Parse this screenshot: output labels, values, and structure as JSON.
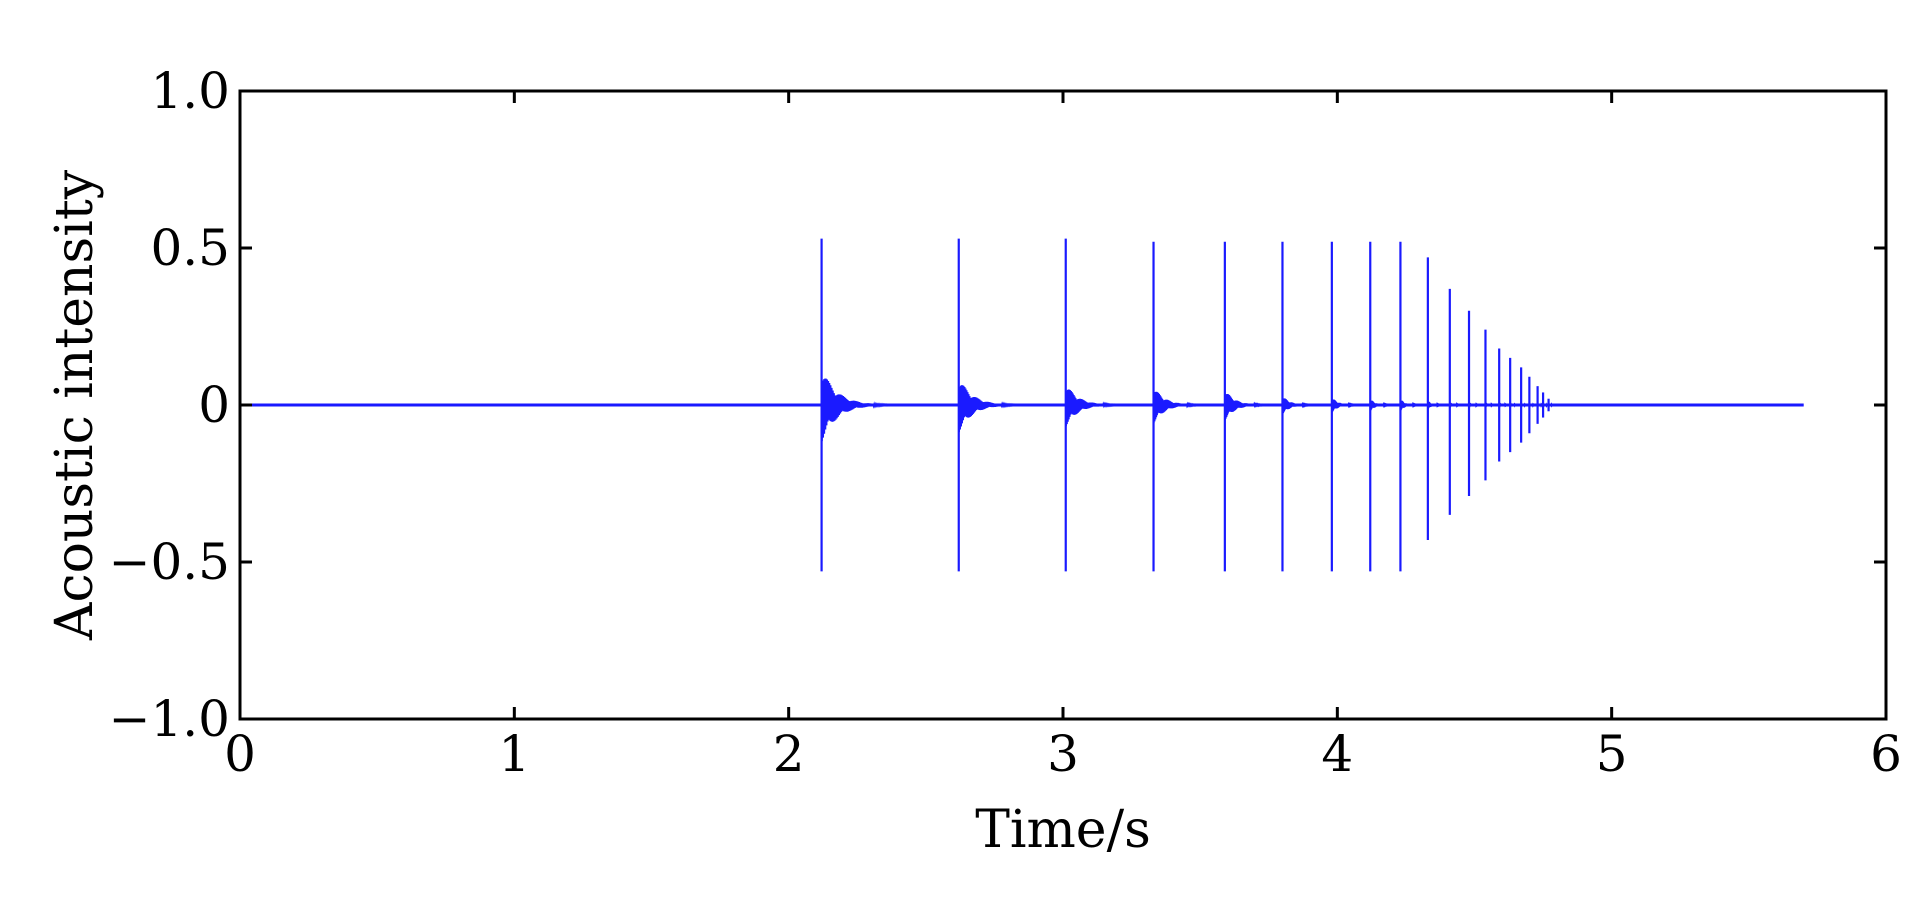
{
  "chart_data": {
    "type": "line",
    "title": "",
    "xlabel": "Time/s",
    "ylabel": "Acoustic intensity",
    "xlim": [
      0,
      6
    ],
    "ylim": [
      -1.0,
      1.0
    ],
    "xticks": [
      0,
      1,
      2,
      3,
      4,
      5,
      6
    ],
    "xtick_labels": [
      "0",
      "1",
      "2",
      "3",
      "4",
      "5",
      "6"
    ],
    "yticks": [
      -1.0,
      -0.5,
      0,
      0.5,
      1.0
    ],
    "ytick_labels": [
      "−1.0",
      "−0.5",
      "0",
      "0.5",
      "1.0"
    ],
    "grid": false,
    "legend": "none",
    "signal_end": 5.7,
    "color": "#1a1aff",
    "series": [
      {
        "impacts": [
          {
            "t": 2.12,
            "max": 0.53,
            "min": -0.53,
            "decay_amp": 0.12,
            "decay_len": 0.25
          },
          {
            "t": 2.62,
            "max": 0.53,
            "min": -0.53,
            "decay_amp": 0.09,
            "decay_len": 0.22
          },
          {
            "t": 3.01,
            "max": 0.53,
            "min": -0.53,
            "decay_amp": 0.07,
            "decay_len": 0.2
          },
          {
            "t": 3.33,
            "max": 0.52,
            "min": -0.53,
            "decay_amp": 0.06,
            "decay_len": 0.18
          },
          {
            "t": 3.59,
            "max": 0.52,
            "min": -0.53,
            "decay_amp": 0.05,
            "decay_len": 0.16
          },
          {
            "t": 3.8,
            "max": 0.52,
            "min": -0.53,
            "decay_amp": 0.03,
            "decay_len": 0.12
          },
          {
            "t": 3.98,
            "max": 0.52,
            "min": -0.53,
            "decay_amp": 0.025,
            "decay_len": 0.1
          },
          {
            "t": 4.12,
            "max": 0.52,
            "min": -0.53,
            "decay_amp": 0.02,
            "decay_len": 0.08
          },
          {
            "t": 4.23,
            "max": 0.52,
            "min": -0.53,
            "decay_amp": 0.02,
            "decay_len": 0.07
          },
          {
            "t": 4.33,
            "max": 0.47,
            "min": -0.43,
            "decay_amp": 0.015,
            "decay_len": 0.05
          },
          {
            "t": 4.41,
            "max": 0.37,
            "min": -0.35,
            "decay_amp": 0.01,
            "decay_len": 0.04
          },
          {
            "t": 4.48,
            "max": 0.3,
            "min": -0.29,
            "decay_amp": 0.01,
            "decay_len": 0.04
          },
          {
            "t": 4.54,
            "max": 0.24,
            "min": -0.24,
            "decay_amp": 0.01,
            "decay_len": 0.03
          },
          {
            "t": 4.59,
            "max": 0.18,
            "min": -0.18,
            "decay_amp": 0.01,
            "decay_len": 0.03
          },
          {
            "t": 4.63,
            "max": 0.15,
            "min": -0.15,
            "decay_amp": 0.01,
            "decay_len": 0.02
          },
          {
            "t": 4.67,
            "max": 0.12,
            "min": -0.12,
            "decay_amp": 0.005,
            "decay_len": 0.02
          },
          {
            "t": 4.7,
            "max": 0.09,
            "min": -0.09,
            "decay_amp": 0.005,
            "decay_len": 0.02
          },
          {
            "t": 4.73,
            "max": 0.06,
            "min": -0.06,
            "decay_amp": 0.005,
            "decay_len": 0.02
          },
          {
            "t": 4.75,
            "max": 0.04,
            "min": -0.04,
            "decay_amp": 0.005,
            "decay_len": 0.02
          },
          {
            "t": 4.77,
            "max": 0.02,
            "min": -0.02,
            "decay_amp": 0.003,
            "decay_len": 0.02
          }
        ]
      }
    ]
  }
}
